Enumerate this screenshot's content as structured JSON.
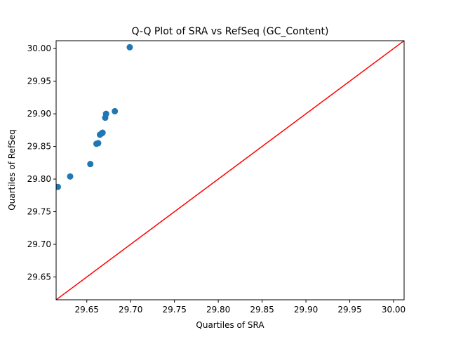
{
  "chart_data": {
    "type": "scatter",
    "title": "Q-Q Plot of SRA vs RefSeq (GC_Content)",
    "xlabel": "Quartiles of SRA",
    "ylabel": "Quartiles of RefSeq",
    "xlim": [
      29.615,
      30.012
    ],
    "ylim": [
      29.615,
      30.012
    ],
    "xticks": [
      "29.65",
      "29.70",
      "29.75",
      "29.80",
      "29.85",
      "29.90",
      "29.95",
      "30.00"
    ],
    "yticks": [
      "29.65",
      "29.70",
      "29.75",
      "29.80",
      "29.85",
      "29.90",
      "29.95",
      "30.00"
    ],
    "grid": false,
    "marker_color": "#1f77b4",
    "reference_line_color": "#ff0000",
    "series": [
      {
        "points": [
          [
            29.617,
            29.788
          ],
          [
            29.631,
            29.804
          ],
          [
            29.654,
            29.823
          ],
          [
            29.661,
            29.854
          ],
          [
            29.663,
            29.855
          ],
          [
            29.665,
            29.868
          ],
          [
            29.667,
            29.87
          ],
          [
            29.668,
            29.871
          ],
          [
            29.671,
            29.894
          ],
          [
            29.672,
            29.9
          ],
          [
            29.682,
            29.904
          ],
          [
            29.699,
            30.002
          ]
        ]
      }
    ],
    "reference_line": [
      [
        29.615,
        29.615
      ],
      [
        30.012,
        30.012
      ]
    ]
  }
}
